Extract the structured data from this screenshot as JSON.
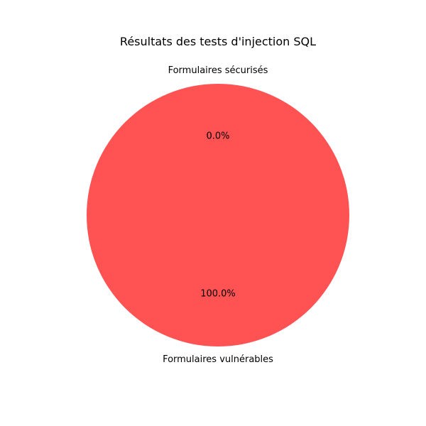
{
  "chart_data": {
    "type": "pie",
    "title": "Résultats des tests d'injection SQL",
    "slices": [
      {
        "label": "Formulaires sécurisés",
        "value": 0,
        "percent_label": "0.0%",
        "color": "#2ecc71"
      },
      {
        "label": "Formulaires vulnérables",
        "value": 100,
        "percent_label": "100.0%",
        "color": "#ff5252"
      }
    ],
    "start_angle": 90,
    "direction": "counterclockwise",
    "legend": "none"
  }
}
